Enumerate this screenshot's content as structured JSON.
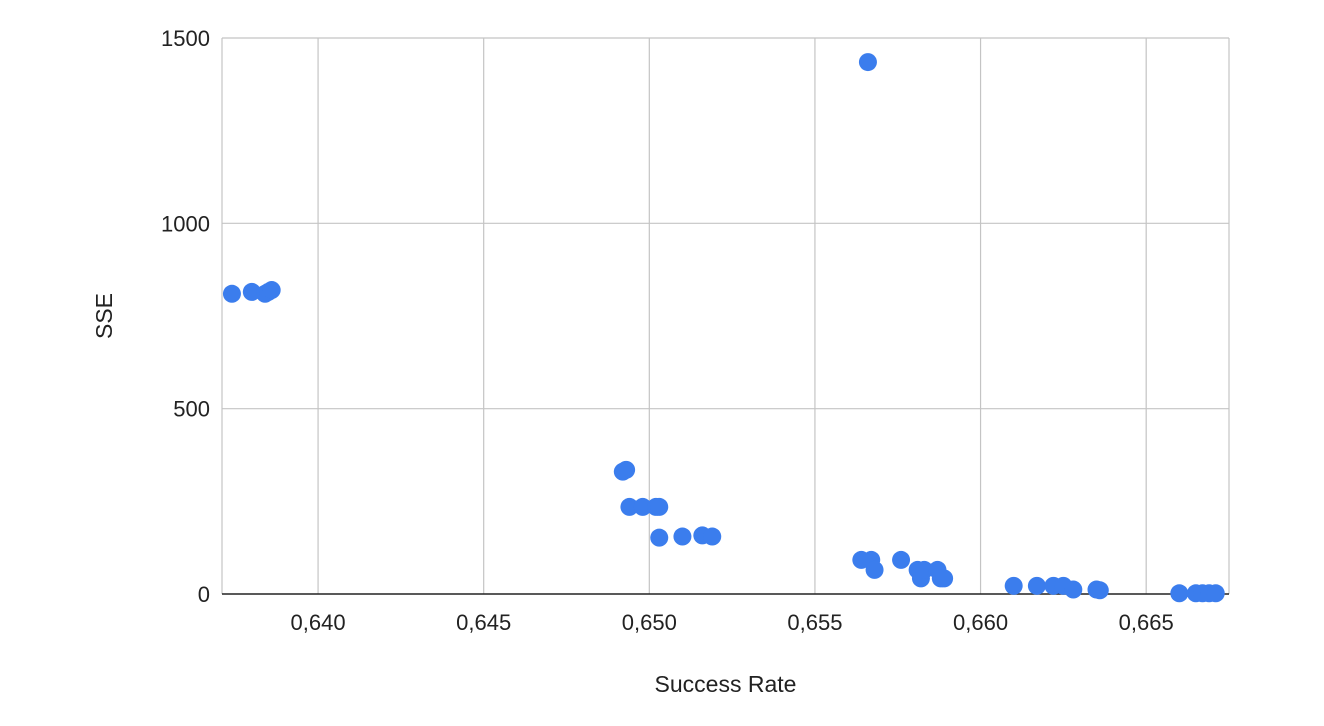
{
  "chart_data": {
    "type": "scatter",
    "xlabel": "Success Rate",
    "ylabel": "SSE",
    "xlim": [
      0.6371,
      0.6675
    ],
    "ylim": [
      0,
      1500
    ],
    "x_ticks": [
      0.64,
      0.645,
      0.65,
      0.655,
      0.66,
      0.665
    ],
    "x_tick_labels": [
      "0,640",
      "0,645",
      "0,650",
      "0,655",
      "0,660",
      "0,665"
    ],
    "y_ticks": [
      0,
      500,
      1000,
      1500
    ],
    "y_tick_labels": [
      "0",
      "500",
      "1000",
      "1500"
    ],
    "grid": true,
    "legend": "none",
    "series": [
      {
        "color": "#3b7ded",
        "points": [
          {
            "x": 0.6374,
            "y": 810
          },
          {
            "x": 0.638,
            "y": 815
          },
          {
            "x": 0.6384,
            "y": 810
          },
          {
            "x": 0.6385,
            "y": 815
          },
          {
            "x": 0.6386,
            "y": 820
          },
          {
            "x": 0.6492,
            "y": 330
          },
          {
            "x": 0.6493,
            "y": 335
          },
          {
            "x": 0.6494,
            "y": 235
          },
          {
            "x": 0.6498,
            "y": 235
          },
          {
            "x": 0.6502,
            "y": 235
          },
          {
            "x": 0.6503,
            "y": 235
          },
          {
            "x": 0.6503,
            "y": 152
          },
          {
            "x": 0.651,
            "y": 155
          },
          {
            "x": 0.6516,
            "y": 158
          },
          {
            "x": 0.6519,
            "y": 155
          },
          {
            "x": 0.6566,
            "y": 1435
          },
          {
            "x": 0.6564,
            "y": 92
          },
          {
            "x": 0.6567,
            "y": 92
          },
          {
            "x": 0.6568,
            "y": 65
          },
          {
            "x": 0.6576,
            "y": 92
          },
          {
            "x": 0.6581,
            "y": 65
          },
          {
            "x": 0.6582,
            "y": 42
          },
          {
            "x": 0.6583,
            "y": 65
          },
          {
            "x": 0.6587,
            "y": 65
          },
          {
            "x": 0.6588,
            "y": 42
          },
          {
            "x": 0.6589,
            "y": 42
          },
          {
            "x": 0.661,
            "y": 22
          },
          {
            "x": 0.6617,
            "y": 22
          },
          {
            "x": 0.6622,
            "y": 22
          },
          {
            "x": 0.6625,
            "y": 22
          },
          {
            "x": 0.6628,
            "y": 12
          },
          {
            "x": 0.6635,
            "y": 12
          },
          {
            "x": 0.6636,
            "y": 10
          },
          {
            "x": 0.666,
            "y": 2
          },
          {
            "x": 0.6665,
            "y": 2
          },
          {
            "x": 0.6667,
            "y": 2
          },
          {
            "x": 0.6669,
            "y": 2
          },
          {
            "x": 0.6671,
            "y": 2
          }
        ]
      }
    ]
  }
}
